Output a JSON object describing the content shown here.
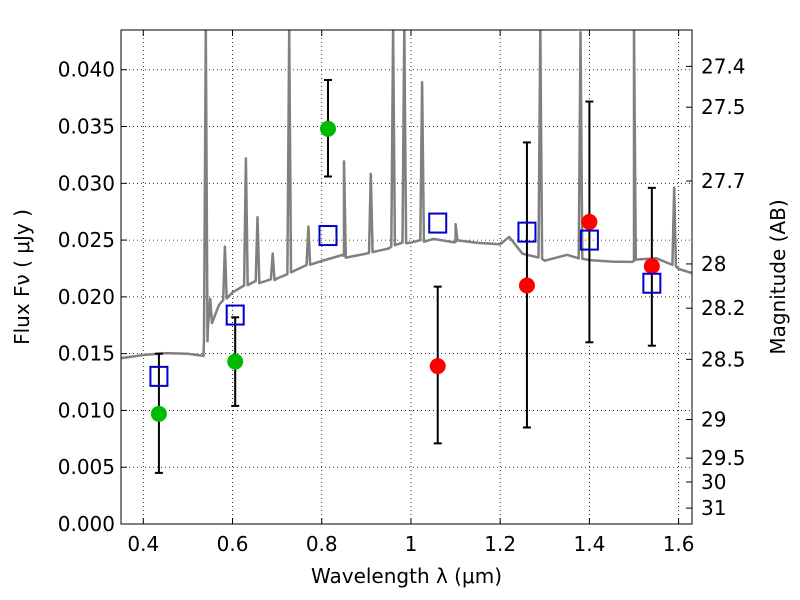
{
  "chart_data": {
    "type": "scatter",
    "xlabel": "Wavelength  λ (μm)",
    "ylabel": "Flux  Fν  ( μJy )",
    "y2label": "Magnitude (AB)",
    "xlim": [
      0.35,
      1.63
    ],
    "ylim": [
      0.0,
      0.0435
    ],
    "grid": true,
    "x_ticks": [
      0.4,
      0.6,
      0.8,
      1.0,
      1.2,
      1.4,
      1.6
    ],
    "x_tick_labels": [
      "0.4",
      "0.6",
      "0.8",
      "1",
      "1.2",
      "1.4",
      "1.6"
    ],
    "y_ticks": [
      0.0,
      0.005,
      0.01,
      0.015,
      0.02,
      0.025,
      0.03,
      0.035,
      0.04
    ],
    "y_tick_labels": [
      "0.000",
      "0.005",
      "0.010",
      "0.015",
      "0.020",
      "0.025",
      "0.030",
      "0.035",
      "0.040"
    ],
    "mag_ticks": [
      {
        "label": "27.4",
        "flux": 0.0403
      },
      {
        "label": "27.5",
        "flux": 0.0367
      },
      {
        "label": "27.7",
        "flux": 0.0302
      },
      {
        "label": "28",
        "flux": 0.0229
      },
      {
        "label": "28.2",
        "flux": 0.019
      },
      {
        "label": "28.5",
        "flux": 0.0145
      },
      {
        "label": "29",
        "flux": 0.0092
      },
      {
        "label": "29.5",
        "flux": 0.0058
      },
      {
        "label": "30",
        "flux": 0.0037
      },
      {
        "label": "31",
        "flux": 0.0014
      }
    ],
    "colors": {
      "model_spectrum": "#808080",
      "green_points": "#00bb00",
      "red_points": "#ff0000",
      "model_squares": "#0000cc",
      "error_bars": "#000000"
    },
    "model_spectrum": {
      "continuum": [
        [
          0.35,
          0.0146
        ],
        [
          0.4,
          0.0148
        ],
        [
          0.45,
          0.0149
        ],
        [
          0.5,
          0.0148
        ],
        [
          0.535,
          0.0146
        ],
        [
          0.545,
          0.0175
        ],
        [
          0.57,
          0.0195
        ],
        [
          0.6,
          0.0203
        ],
        [
          0.65,
          0.0212
        ],
        [
          0.7,
          0.0218
        ],
        [
          0.75,
          0.0224
        ],
        [
          0.8,
          0.023
        ],
        [
          0.85,
          0.0236
        ],
        [
          0.9,
          0.024
        ],
        [
          0.95,
          0.0243
        ],
        [
          1.0,
          0.0247
        ],
        [
          1.05,
          0.0253
        ],
        [
          1.1,
          0.025
        ],
        [
          1.15,
          0.0247
        ],
        [
          1.2,
          0.0245
        ],
        [
          1.22,
          0.0251
        ],
        [
          1.25,
          0.0236
        ],
        [
          1.3,
          0.0232
        ],
        [
          1.35,
          0.0238
        ],
        [
          1.4,
          0.0234
        ],
        [
          1.45,
          0.0232
        ],
        [
          1.5,
          0.0231
        ],
        [
          1.55,
          0.0232
        ],
        [
          1.6,
          0.0225
        ],
        [
          1.63,
          0.0222
        ]
      ],
      "emission_lines": [
        [
          0.54,
          0.0435
        ],
        [
          0.55,
          0.02
        ],
        [
          0.583,
          0.0245
        ],
        [
          0.63,
          0.032
        ],
        [
          0.656,
          0.027
        ],
        [
          0.69,
          0.024
        ],
        [
          0.727,
          0.0435
        ],
        [
          0.77,
          0.026
        ],
        [
          0.85,
          0.032
        ],
        [
          0.91,
          0.031
        ],
        [
          0.96,
          0.0435
        ],
        [
          0.985,
          0.0435
        ],
        [
          1.025,
          0.039
        ],
        [
          1.1,
          0.0265
        ],
        [
          1.29,
          0.0435
        ],
        [
          1.38,
          0.0435
        ],
        [
          1.5,
          0.0435
        ],
        [
          1.59,
          0.0295
        ]
      ]
    },
    "series": [
      {
        "marker": "circle",
        "color": "green",
        "points": [
          {
            "x": 0.435,
            "y": 0.0097,
            "ylow": 0.0045,
            "yhigh": 0.015
          },
          {
            "x": 0.606,
            "y": 0.0143,
            "ylow": 0.0104,
            "yhigh": 0.0182
          },
          {
            "x": 0.814,
            "y": 0.0348,
            "ylow": 0.0306,
            "yhigh": 0.0391
          }
        ]
      },
      {
        "marker": "circle",
        "color": "red",
        "points": [
          {
            "x": 1.06,
            "y": 0.0139,
            "ylow": 0.0071,
            "yhigh": 0.0209
          },
          {
            "x": 1.26,
            "y": 0.021,
            "ylow": 0.0085,
            "yhigh": 0.0336
          },
          {
            "x": 1.4,
            "y": 0.0266,
            "ylow": 0.016,
            "yhigh": 0.0372
          },
          {
            "x": 1.54,
            "y": 0.0227,
            "ylow": 0.0157,
            "yhigh": 0.0296
          }
        ]
      },
      {
        "marker": "square-open",
        "color": "blue",
        "points": [
          {
            "x": 0.435,
            "y": 0.013
          },
          {
            "x": 0.606,
            "y": 0.0184
          },
          {
            "x": 0.814,
            "y": 0.0254
          },
          {
            "x": 1.06,
            "y": 0.0265
          },
          {
            "x": 1.26,
            "y": 0.0257
          },
          {
            "x": 1.4,
            "y": 0.025
          },
          {
            "x": 1.54,
            "y": 0.0212
          }
        ]
      }
    ]
  }
}
